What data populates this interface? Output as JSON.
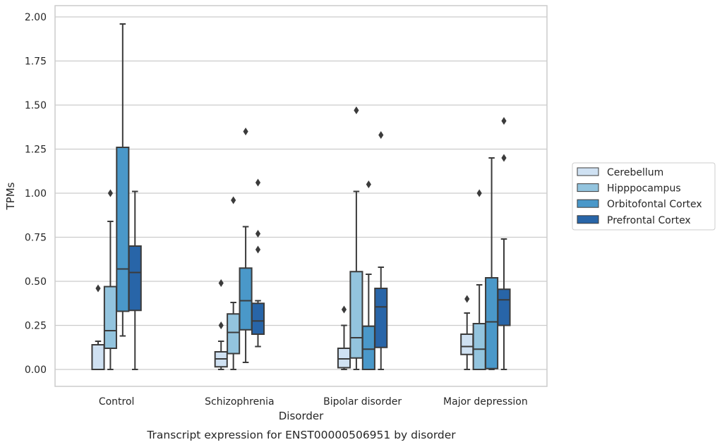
{
  "caption": "Transcript expression for ENST00000506951 by disorder",
  "chart_data": {
    "type": "boxplot",
    "xlabel": "Disorder",
    "ylabel": "TPMs",
    "ylim": [
      -0.1,
      2.05
    ],
    "yticks": [
      "0.00",
      "0.25",
      "0.50",
      "0.75",
      "1.00",
      "1.25",
      "1.50",
      "1.75",
      "2.00"
    ],
    "grid": "horizontal",
    "legend_position": "right",
    "categories": [
      "Control",
      "Schizophrenia",
      "Bipolar disorder",
      "Major depression"
    ],
    "series": [
      {
        "name": "Cerebellum",
        "color": "#cfe1f2",
        "boxes": [
          {
            "whislo": 0.0,
            "q1": 0.0,
            "med": 0.0,
            "q3": 0.14,
            "whishi": 0.16,
            "fliers": [
              0.46
            ]
          },
          {
            "whislo": 0.0,
            "q1": 0.015,
            "med": 0.06,
            "q3": 0.1,
            "whishi": 0.16,
            "fliers": [
              0.25,
              0.49
            ]
          },
          {
            "whislo": 0.0,
            "q1": 0.01,
            "med": 0.06,
            "q3": 0.12,
            "whishi": 0.25,
            "fliers": [
              0.34
            ]
          },
          {
            "whislo": 0.0,
            "q1": 0.085,
            "med": 0.13,
            "q3": 0.2,
            "whishi": 0.32,
            "fliers": [
              0.4
            ]
          }
        ]
      },
      {
        "name": "Hipppocampus",
        "color": "#93c4de",
        "boxes": [
          {
            "whislo": 0.0,
            "q1": 0.12,
            "med": 0.22,
            "q3": 0.47,
            "whishi": 0.84,
            "fliers": [
              1.0
            ]
          },
          {
            "whislo": 0.0,
            "q1": 0.09,
            "med": 0.21,
            "q3": 0.315,
            "whishi": 0.38,
            "fliers": [
              0.96
            ]
          },
          {
            "whislo": 0.0,
            "q1": 0.065,
            "med": 0.18,
            "q3": 0.555,
            "whishi": 1.01,
            "fliers": [
              1.47
            ]
          },
          {
            "whislo": 0.0,
            "q1": 0.0,
            "med": 0.115,
            "q3": 0.26,
            "whishi": 0.48,
            "fliers": [
              1.0
            ]
          }
        ]
      },
      {
        "name": "Orbitofontal Cortex",
        "color": "#4a98c9",
        "boxes": [
          {
            "whislo": 0.19,
            "q1": 0.33,
            "med": 0.57,
            "q3": 1.26,
            "whishi": 1.96,
            "fliers": []
          },
          {
            "whislo": 0.04,
            "q1": 0.225,
            "med": 0.39,
            "q3": 0.575,
            "whishi": 0.81,
            "fliers": [
              1.35
            ]
          },
          {
            "whislo": 0.0,
            "q1": 0.0,
            "med": 0.115,
            "q3": 0.245,
            "whishi": 0.54,
            "fliers": [
              1.05
            ]
          },
          {
            "whislo": 0.0,
            "q1": 0.005,
            "med": 0.27,
            "q3": 0.52,
            "whishi": 1.2,
            "fliers": []
          }
        ]
      },
      {
        "name": "Prefrontal Cortex",
        "color": "#2865a8",
        "boxes": [
          {
            "whislo": 0.0,
            "q1": 0.335,
            "med": 0.55,
            "q3": 0.7,
            "whishi": 1.01,
            "fliers": []
          },
          {
            "whislo": 0.13,
            "q1": 0.2,
            "med": 0.275,
            "q3": 0.375,
            "whishi": 0.39,
            "fliers": [
              0.68,
              0.77,
              1.06
            ]
          },
          {
            "whislo": 0.0,
            "q1": 0.125,
            "med": 0.355,
            "q3": 0.46,
            "whishi": 0.58,
            "fliers": [
              1.33
            ]
          },
          {
            "whislo": 0.0,
            "q1": 0.25,
            "med": 0.395,
            "q3": 0.455,
            "whishi": 0.74,
            "fliers": [
              1.2,
              1.41
            ]
          }
        ]
      }
    ]
  }
}
